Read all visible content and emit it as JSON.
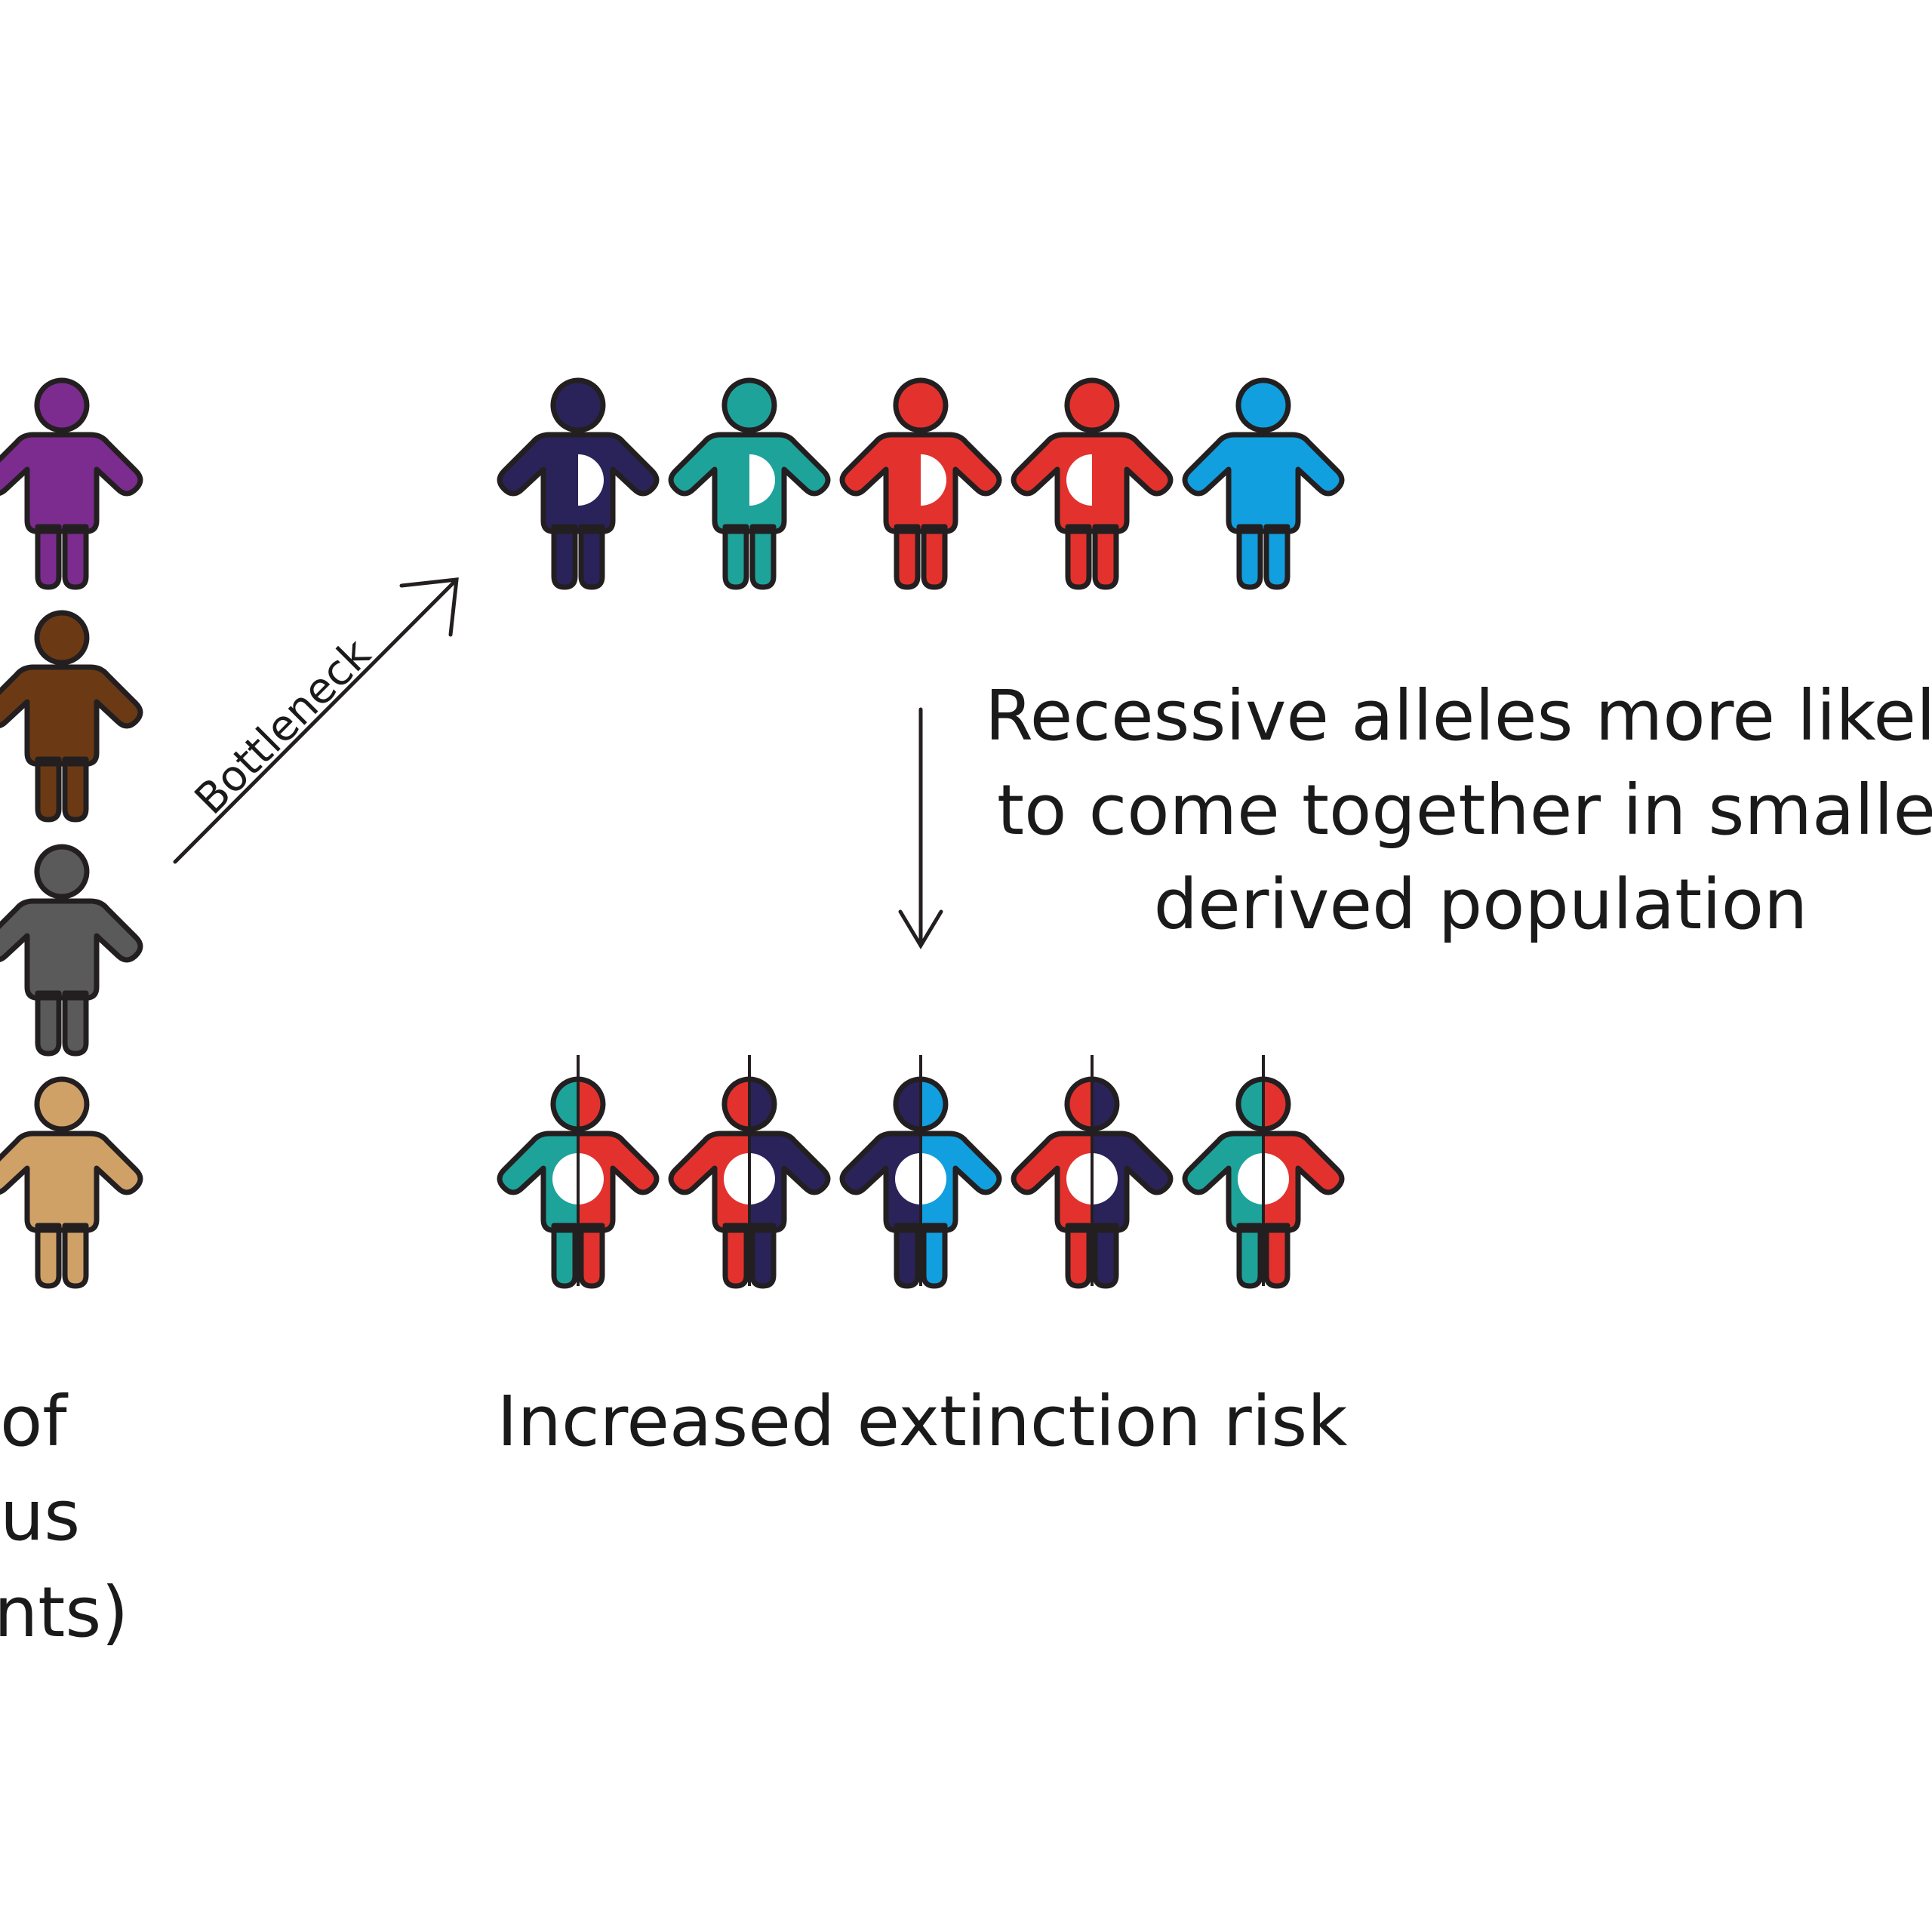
{
  "labels": {
    "bottleneck": "Bottleneck",
    "recessive_lines": [
      "Recessive alleles more likely",
      "to come together in smaller",
      "derived population"
    ],
    "outcome": "Increased extinction risk",
    "left_caption_fragments": [
      "of",
      "us",
      "nts)"
    ]
  },
  "colors": {
    "outline": "#231f20",
    "purple": "#7b2c8e",
    "brown": "#6b3a14",
    "gray": "#5a5a5a",
    "tan": "#cfa167",
    "navy": "#2a2359",
    "teal": "#1ea39b",
    "red": "#e3322d",
    "blue": "#119fdf",
    "white": "#ffffff"
  },
  "source_population": [
    {
      "name": "purple-figure",
      "color": "purple"
    },
    {
      "name": "brown-figure",
      "color": "brown"
    },
    {
      "name": "gray-figure",
      "color": "gray"
    },
    {
      "name": "tan-figure",
      "color": "tan"
    }
  ],
  "derived_population": [
    {
      "name": "navy-carrier-figure",
      "base": "navy",
      "recessive_allele": "half-right"
    },
    {
      "name": "teal-carrier-figure",
      "base": "teal",
      "recessive_allele": "half-right"
    },
    {
      "name": "red-carrier-figure",
      "base": "red",
      "recessive_allele": "half-right"
    },
    {
      "name": "red-carrier-figure",
      "base": "red",
      "recessive_allele": "half-left"
    },
    {
      "name": "blue-figure",
      "base": "blue",
      "recessive_allele": "none"
    }
  ],
  "offspring_population": [
    {
      "name": "teal-red-homozygous-figure",
      "left": "teal",
      "right": "red"
    },
    {
      "name": "red-navy-homozygous-figure",
      "left": "red",
      "right": "navy"
    },
    {
      "name": "navy-blue-homozygous-figure",
      "left": "navy",
      "right": "blue"
    },
    {
      "name": "red-navy-homozygous-figure",
      "left": "red",
      "right": "navy"
    },
    {
      "name": "teal-red-homozygous-figure",
      "left": "teal",
      "right": "red"
    }
  ]
}
